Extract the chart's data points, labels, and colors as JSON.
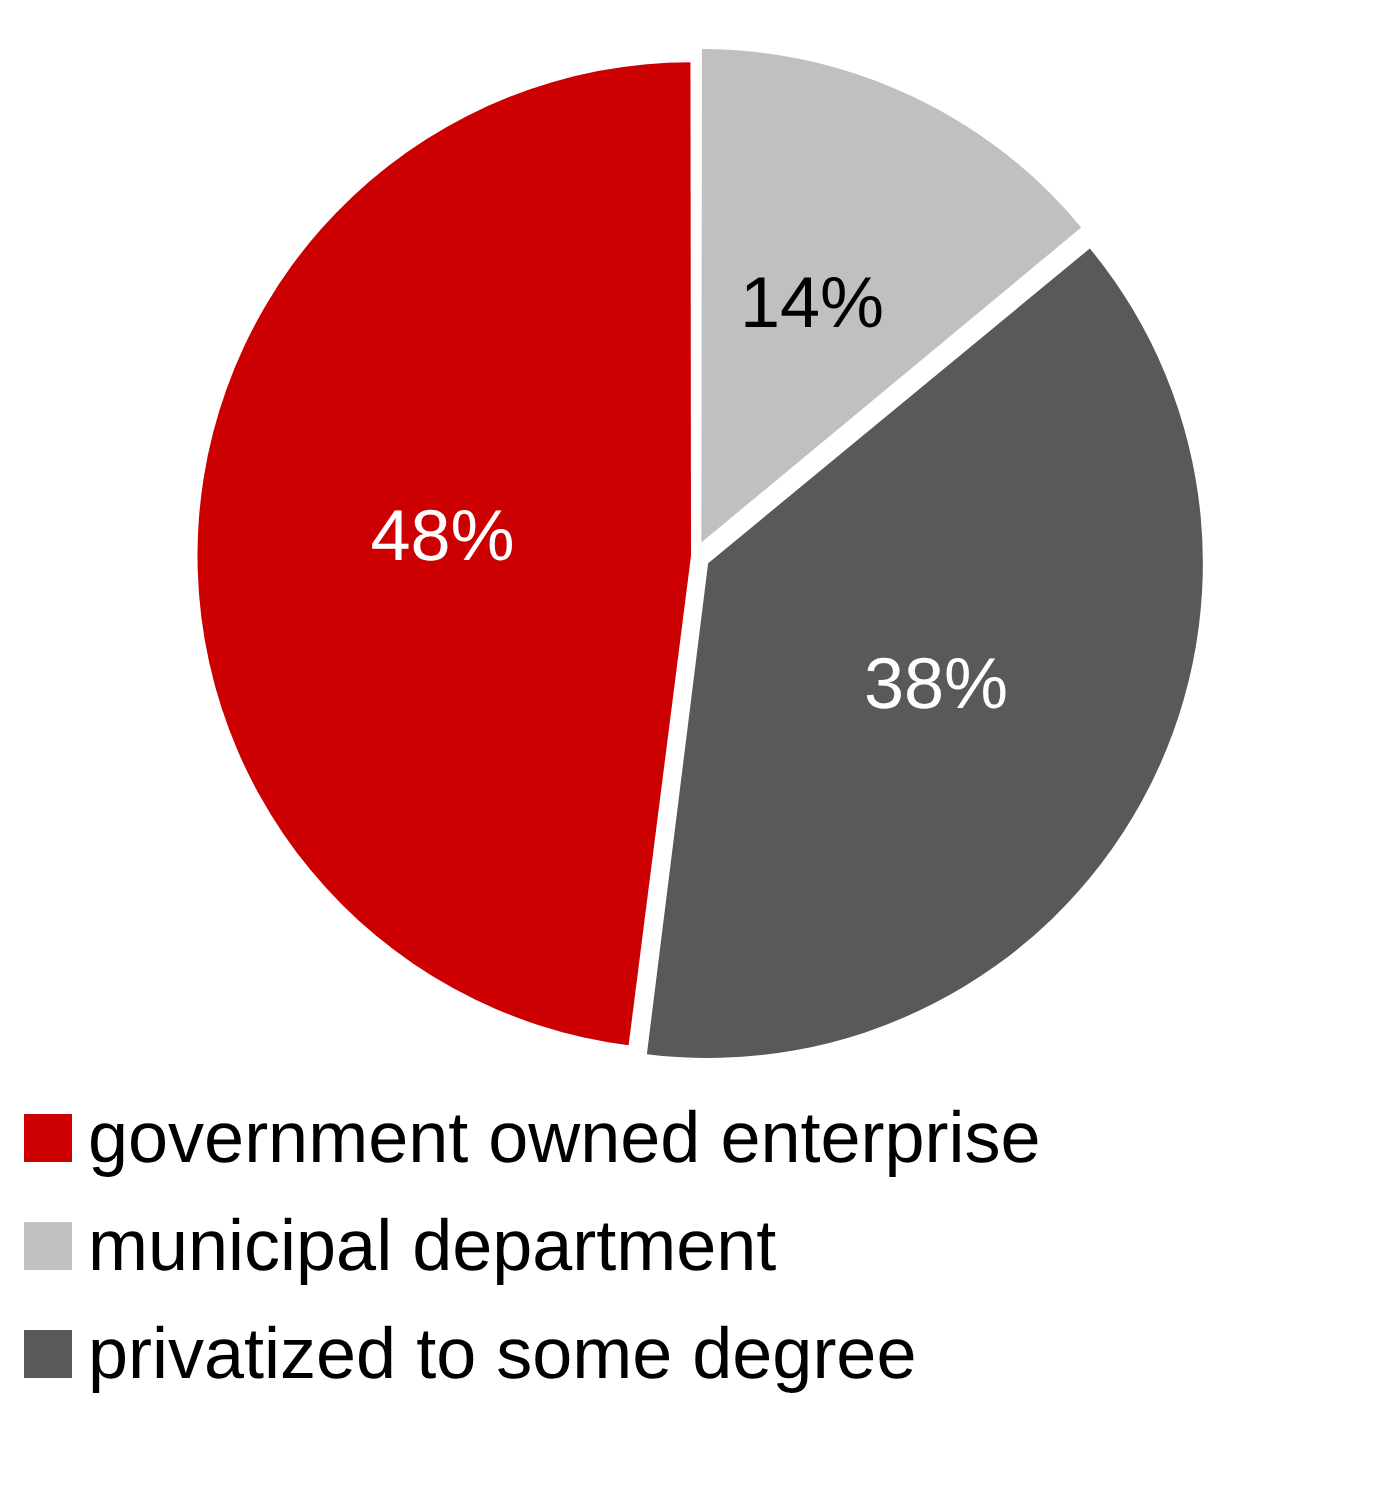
{
  "chart_data": {
    "type": "pie",
    "categories": [
      "government owned enterprise",
      "municipal department",
      "privatized to some degree"
    ],
    "values": [
      48,
      14,
      38
    ],
    "colors": [
      "#cc0000",
      "#c0c0c0",
      "#595959"
    ],
    "value_labels": [
      "48%",
      "14%",
      "38%"
    ],
    "legend": "bottom"
  }
}
